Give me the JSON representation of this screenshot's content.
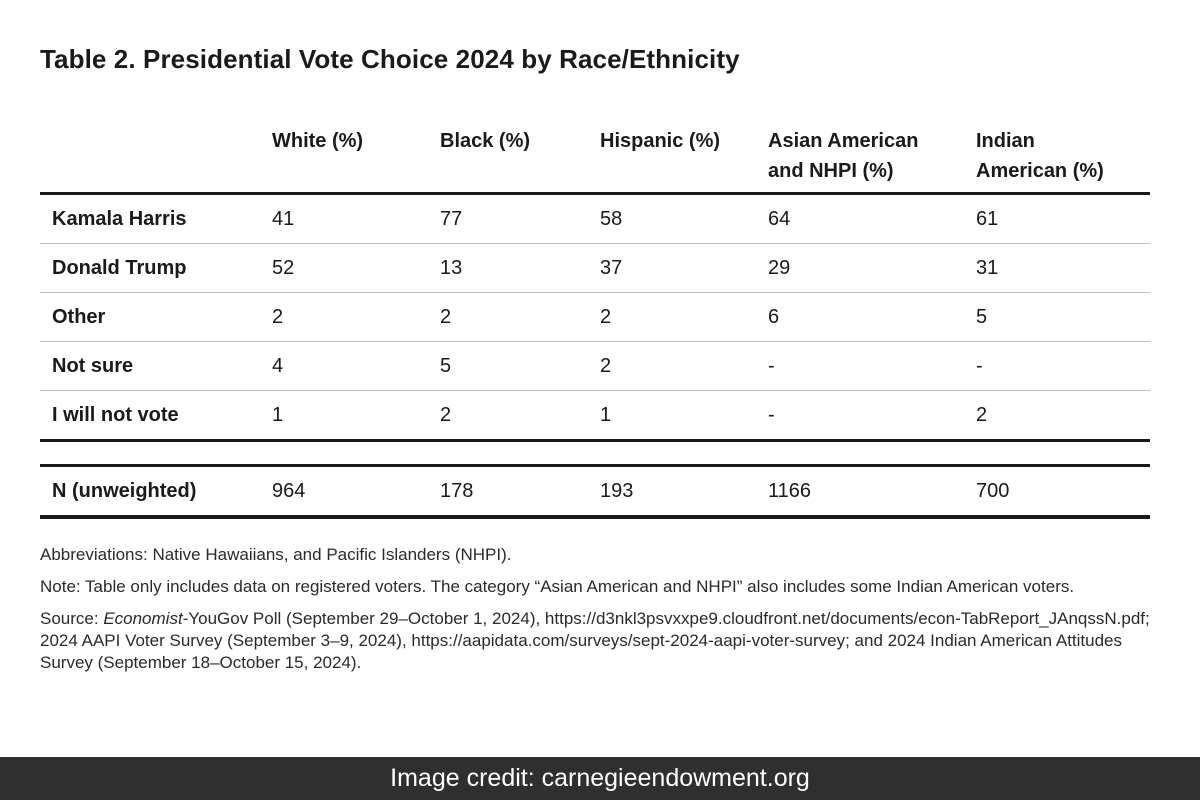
{
  "title": "Table 2. Presidential Vote Choice 2024 by Race/Ethnicity",
  "table": {
    "columns": [
      {
        "line1": "White (%)",
        "line2": ""
      },
      {
        "line1": "Black (%)",
        "line2": ""
      },
      {
        "line1": "Hispanic (%)",
        "line2": ""
      },
      {
        "line1": "Asian American",
        "line2": "and NHPI (%)"
      },
      {
        "line1": "Indian",
        "line2": "American (%)"
      }
    ],
    "rows": [
      {
        "label": "Kamala Harris",
        "values": [
          "41",
          "77",
          "58",
          "64",
          "61"
        ]
      },
      {
        "label": "Donald Trump",
        "values": [
          "52",
          "13",
          "37",
          "29",
          "31"
        ]
      },
      {
        "label": "Other",
        "values": [
          "2",
          "2",
          "2",
          "6",
          "5"
        ]
      },
      {
        "label": "Not sure",
        "values": [
          "4",
          "5",
          "2",
          "-",
          "-"
        ]
      },
      {
        "label": "I will not vote",
        "values": [
          "1",
          "2",
          "1",
          "-",
          "2"
        ]
      }
    ],
    "total": {
      "label": "N (unweighted)",
      "values": [
        "964",
        "178",
        "193",
        "1166",
        "700"
      ]
    }
  },
  "notes": {
    "abbreviations": "Abbreviations: Native Hawaiians, and Pacific Islanders (NHPI).",
    "note": "Note: Table only includes data on registered voters. The category “Asian American and NHPI” also includes some Indian American voters.",
    "source_prefix": "Source: ",
    "source_italic": "Economist",
    "source_rest": "-YouGov Poll (September 29–October 1, 2024), https://d3nkl3psvxxpe9.cloudfront.net/documents/econ-TabReport_JAnqssN.pdf; 2024 AAPI Voter Survey (September 3–9, 2024), https://aapidata.com/surveys/sept-2024-aapi-voter-survey; and 2024 Indian American Attitudes Survey (September 18–October 15, 2024)."
  },
  "credit": "Image credit: carnegieendowment.org"
}
